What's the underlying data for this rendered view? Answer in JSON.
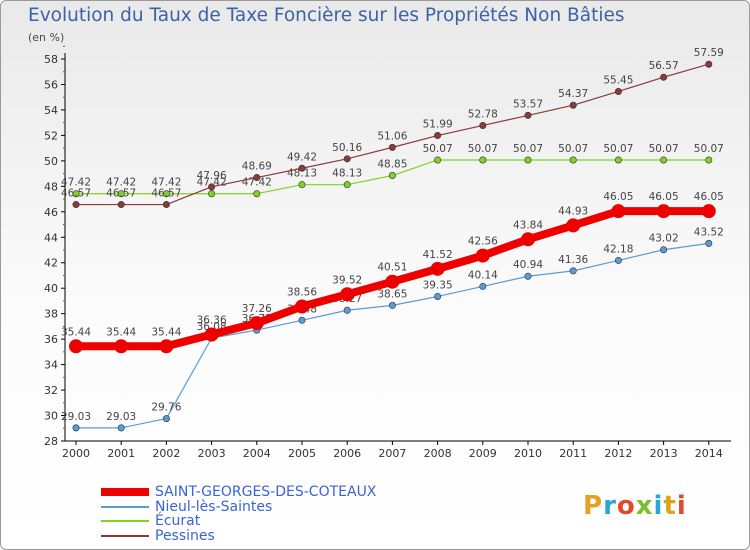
{
  "title": "Evolution du Taux de Taxe Foncière sur les Propriétés Non Bâties",
  "unit_label": "(en %)",
  "chart_data": {
    "type": "line",
    "x": [
      "2000",
      "2001",
      "2002",
      "2003",
      "2004",
      "2005",
      "2006",
      "2007",
      "2008",
      "2009",
      "2010",
      "2011",
      "2012",
      "2013",
      "2014"
    ],
    "ylim": [
      28,
      58
    ],
    "yticks": [
      28,
      30,
      32,
      34,
      36,
      38,
      40,
      42,
      44,
      46,
      48,
      50,
      52,
      54,
      56,
      58
    ],
    "grid": false,
    "legend_position": "bottom-left",
    "series": [
      {
        "name": "SAINT-GEORGES-DES-COTEAUX",
        "color": "#ee0000",
        "values": [
          35.44,
          35.44,
          35.44,
          36.36,
          37.26,
          38.56,
          39.52,
          40.51,
          41.52,
          42.56,
          43.84,
          44.93,
          46.05,
          46.05,
          46.05
        ],
        "labels": [
          "35.44",
          "35.44",
          "35.44",
          "36.36",
          "37.26",
          "38.56",
          "39.52",
          "40.51",
          "41.52",
          "42.56",
          "43.84",
          "44.93",
          "46.05",
          "46.05",
          "46.05"
        ]
      },
      {
        "name": "Nieul-lès-Saintes",
        "color": "#5b9bd5",
        "values": [
          29.03,
          29.03,
          29.76,
          36.08,
          36.71,
          37.48,
          38.27,
          38.65,
          39.35,
          40.14,
          40.94,
          41.36,
          42.18,
          43.02,
          43.52
        ],
        "labels": [
          "29.03",
          "29.03",
          "29.76",
          "36.08",
          "36.71",
          "37.48",
          "38.27",
          "38.65",
          "39.35",
          "40.14",
          "40.94",
          "41.36",
          "42.18",
          "43.02",
          "43.52"
        ]
      },
      {
        "name": "Écurat",
        "color": "#7ed321",
        "values": [
          47.42,
          47.42,
          47.42,
          47.42,
          47.42,
          48.13,
          48.13,
          48.85,
          50.07,
          50.07,
          50.07,
          50.07,
          50.07,
          50.07,
          50.07
        ],
        "labels": [
          "47.42",
          "47.42",
          "47.42",
          "47.42",
          "47.42",
          "48.13",
          "48.13",
          "48.85",
          "50.07",
          "50.07",
          "50.07",
          "50.07",
          "50.07",
          "50.07",
          "50.07"
        ]
      },
      {
        "name": "Pessines",
        "color": "#8b3a3a",
        "values": [
          46.57,
          46.57,
          46.57,
          47.96,
          48.69,
          49.42,
          50.16,
          51.06,
          51.99,
          52.78,
          53.57,
          54.37,
          55.45,
          56.57,
          57.59
        ],
        "labels": [
          "46.57",
          "46.57",
          "46.57",
          "47.96",
          "48.69",
          "49.42",
          "50.16",
          "51.06",
          "51.99",
          "52.78",
          "53.57",
          "54.37",
          "55.45",
          "56.57",
          "57.59"
        ]
      }
    ]
  },
  "logo": {
    "text": "Proxiti",
    "colors": [
      "#e8a020",
      "#2aa5d8",
      "#e04a2a",
      "#7cbf2a",
      "#2aa5d8",
      "#e0a020",
      "#e04a2a"
    ]
  }
}
